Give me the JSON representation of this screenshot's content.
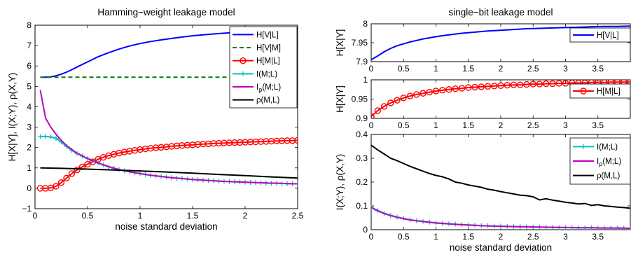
{
  "chart_data": [
    {
      "type": "line",
      "title": "Hamming−weight leakage model",
      "xlabel": "noise standard deviation",
      "ylabel": "H[X|Y], I(X;Y), ρ(X,Y)",
      "xlim": [
        0,
        2.5
      ],
      "ylim": [
        -1,
        8
      ],
      "xticks": [
        "0",
        "0.5",
        "1",
        "1.5",
        "2",
        "2.5"
      ],
      "yticks": [
        "−1",
        "0",
        "1",
        "2",
        "3",
        "4",
        "5",
        "6",
        "7",
        "8"
      ],
      "legend_position": "top-right",
      "series": [
        {
          "name": "H[V|L]",
          "color": "#0000ff",
          "dash": "solid",
          "marker": "none",
          "x": [
            0.05,
            0.1,
            0.15,
            0.2,
            0.25,
            0.3,
            0.35,
            0.4,
            0.5,
            0.6,
            0.7,
            0.8,
            0.9,
            1.0,
            1.1,
            1.2,
            1.3,
            1.4,
            1.5,
            1.6,
            1.7,
            1.8,
            1.9,
            2.0,
            2.1,
            2.2,
            2.3,
            2.4,
            2.5
          ],
          "y": [
            5.45,
            5.45,
            5.47,
            5.52,
            5.6,
            5.7,
            5.82,
            5.95,
            6.2,
            6.45,
            6.65,
            6.83,
            6.98,
            7.1,
            7.2,
            7.28,
            7.35,
            7.42,
            7.48,
            7.53,
            7.57,
            7.61,
            7.64,
            7.67,
            7.69,
            7.72,
            7.74,
            7.76,
            7.78
          ]
        },
        {
          "name": "H[V|M]",
          "color": "#008000",
          "dash": "dashed",
          "marker": "none",
          "x": [
            0.05,
            2.5
          ],
          "y": [
            5.45,
            5.45
          ]
        },
        {
          "name": "H[M|L]",
          "color": "#ff0000",
          "dash": "solid",
          "marker": "circle",
          "x": [
            0.05,
            0.1,
            0.15,
            0.2,
            0.25,
            0.3,
            0.35,
            0.4,
            0.45,
            0.5,
            0.55,
            0.6,
            0.65,
            0.7,
            0.75,
            0.8,
            0.85,
            0.9,
            0.95,
            1.0,
            1.05,
            1.1,
            1.15,
            1.2,
            1.25,
            1.3,
            1.35,
            1.4,
            1.45,
            1.5,
            1.55,
            1.6,
            1.65,
            1.7,
            1.75,
            1.8,
            1.85,
            1.9,
            1.95,
            2.0,
            2.05,
            2.1,
            2.15,
            2.2,
            2.25,
            2.3,
            2.35,
            2.4,
            2.45,
            2.5
          ],
          "y": [
            0.0,
            0.0,
            0.02,
            0.1,
            0.28,
            0.5,
            0.72,
            0.9,
            1.05,
            1.18,
            1.3,
            1.42,
            1.52,
            1.6,
            1.67,
            1.73,
            1.78,
            1.82,
            1.86,
            1.9,
            1.93,
            1.96,
            1.99,
            2.01,
            2.03,
            2.06,
            2.08,
            2.1,
            2.12,
            2.13,
            2.15,
            2.17,
            2.18,
            2.2,
            2.21,
            2.22,
            2.23,
            2.24,
            2.25,
            2.26,
            2.27,
            2.28,
            2.29,
            2.3,
            2.31,
            2.32,
            2.33,
            2.34,
            2.34,
            2.35
          ]
        },
        {
          "name": "I(M;L)",
          "color": "#00bfbf",
          "dash": "solid",
          "marker": "plus",
          "x": [
            0.05,
            0.1,
            0.15,
            0.2,
            0.25,
            0.3,
            0.35,
            0.4,
            0.45,
            0.5,
            0.55,
            0.6,
            0.65,
            0.7,
            0.75,
            0.8,
            0.85,
            0.9,
            0.95,
            1.0,
            1.05,
            1.1,
            1.15,
            1.2,
            1.25,
            1.3,
            1.35,
            1.4,
            1.45,
            1.5,
            1.55,
            1.6,
            1.65,
            1.7,
            1.75,
            1.8,
            1.85,
            1.9,
            1.95,
            2.0,
            2.05,
            2.1,
            2.15,
            2.2,
            2.25,
            2.3,
            2.35,
            2.4,
            2.45,
            2.5
          ],
          "y": [
            2.54,
            2.54,
            2.52,
            2.45,
            2.27,
            2.05,
            1.87,
            1.71,
            1.58,
            1.46,
            1.35,
            1.24,
            1.15,
            1.06,
            0.98,
            0.92,
            0.86,
            0.81,
            0.76,
            0.72,
            0.68,
            0.64,
            0.61,
            0.58,
            0.55,
            0.52,
            0.5,
            0.48,
            0.45,
            0.43,
            0.42,
            0.4,
            0.38,
            0.37,
            0.35,
            0.34,
            0.33,
            0.32,
            0.31,
            0.3,
            0.29,
            0.28,
            0.27,
            0.26,
            0.25,
            0.25,
            0.24,
            0.23,
            0.22,
            0.22
          ]
        },
        {
          "name": "Iρ(M;L)",
          "color": "#bf00bf",
          "dash": "solid",
          "marker": "none",
          "x": [
            0.05,
            0.1,
            0.15,
            0.2,
            0.25,
            0.3,
            0.35,
            0.4,
            0.5,
            0.6,
            0.7,
            0.8,
            0.9,
            1.0,
            1.1,
            1.2,
            1.3,
            1.4,
            1.5,
            1.6,
            1.7,
            1.8,
            1.9,
            2.0,
            2.1,
            2.2,
            2.3,
            2.4,
            2.5
          ],
          "y": [
            4.82,
            3.45,
            3.0,
            2.65,
            2.35,
            2.1,
            1.9,
            1.72,
            1.46,
            1.24,
            1.06,
            0.92,
            0.81,
            0.72,
            0.64,
            0.58,
            0.52,
            0.48,
            0.43,
            0.4,
            0.37,
            0.34,
            0.32,
            0.3,
            0.28,
            0.26,
            0.25,
            0.23,
            0.22
          ]
        },
        {
          "name": "ρ(M,L)",
          "color": "#000000",
          "dash": "solid",
          "marker": "none",
          "x": [
            0.05,
            0.25,
            0.5,
            0.75,
            1.0,
            1.25,
            1.5,
            1.75,
            2.0,
            2.25,
            2.5
          ],
          "y": [
            1.0,
            0.98,
            0.94,
            0.9,
            0.85,
            0.8,
            0.74,
            0.68,
            0.62,
            0.56,
            0.5
          ]
        }
      ]
    },
    {
      "type": "line",
      "title": "single−bit leakage model",
      "xlabel": "",
      "ylabel": "H[X|Y]",
      "xlim": [
        0,
        4
      ],
      "ylim": [
        7.9,
        8
      ],
      "xticks": [
        "0",
        "0.5",
        "1",
        "1.5",
        "2",
        "2.5",
        "3",
        "3.5"
      ],
      "yticks": [
        "7.9",
        "7.95",
        "8"
      ],
      "legend_position": "bottom-right",
      "series": [
        {
          "name": "H[V|L]",
          "color": "#0000ff",
          "dash": "solid",
          "marker": "none",
          "x": [
            0.0,
            0.1,
            0.2,
            0.3,
            0.4,
            0.5,
            0.6,
            0.7,
            0.8,
            0.9,
            1.0,
            1.2,
            1.4,
            1.6,
            1.8,
            2.0,
            2.2,
            2.4,
            2.6,
            2.8,
            3.0,
            3.2,
            3.4,
            3.6,
            3.8,
            4.0
          ],
          "y": [
            7.905,
            7.915,
            7.926,
            7.935,
            7.942,
            7.947,
            7.952,
            7.956,
            7.96,
            7.963,
            7.966,
            7.971,
            7.975,
            7.978,
            7.981,
            7.983,
            7.985,
            7.987,
            7.988,
            7.989,
            7.99,
            7.991,
            7.992,
            7.993,
            7.993,
            7.994
          ]
        }
      ]
    },
    {
      "type": "line",
      "title": "",
      "xlabel": "",
      "ylabel": "H[X|Y]",
      "xlim": [
        0,
        4
      ],
      "ylim": [
        0.9,
        1
      ],
      "xticks": [
        "0",
        "0.5",
        "1",
        "1.5",
        "2",
        "2.5",
        "3",
        "3.5"
      ],
      "yticks": [
        "0.9",
        "0.95",
        "1"
      ],
      "legend_position": "bottom-right",
      "series": [
        {
          "name": "H[M|L]",
          "color": "#ff0000",
          "dash": "solid",
          "marker": "circle",
          "x": [
            0.0,
            0.1,
            0.2,
            0.3,
            0.4,
            0.5,
            0.6,
            0.7,
            0.8,
            0.9,
            1.0,
            1.1,
            1.2,
            1.3,
            1.4,
            1.5,
            1.6,
            1.7,
            1.8,
            1.9,
            2.0,
            2.1,
            2.2,
            2.3,
            2.4,
            2.5,
            2.6,
            2.7,
            2.8,
            2.9,
            3.0,
            3.1,
            3.2,
            3.3,
            3.4,
            3.5,
            3.6,
            3.7,
            3.8,
            3.9,
            4.0
          ],
          "y": [
            0.905,
            0.92,
            0.931,
            0.94,
            0.947,
            0.953,
            0.958,
            0.962,
            0.965,
            0.968,
            0.971,
            0.973,
            0.975,
            0.977,
            0.978,
            0.98,
            0.981,
            0.982,
            0.983,
            0.984,
            0.985,
            0.986,
            0.987,
            0.987,
            0.988,
            0.989,
            0.989,
            0.99,
            0.99,
            0.991,
            0.991,
            0.992,
            0.992,
            0.992,
            0.993,
            0.993,
            0.993,
            0.994,
            0.994,
            0.994,
            0.994
          ]
        }
      ]
    },
    {
      "type": "line",
      "title": "",
      "xlabel": "noise standard deviation",
      "ylabel": "I(X;Y), ρ(X,Y)",
      "xlim": [
        0,
        4
      ],
      "ylim": [
        0,
        0.4
      ],
      "xticks": [
        "0",
        "0.5",
        "1",
        "1.5",
        "2",
        "2.5",
        "3",
        "3.5"
      ],
      "yticks": [
        "0",
        "0.1",
        "0.2",
        "0.3",
        "0.4"
      ],
      "legend_position": "top-right",
      "series": [
        {
          "name": "I(M;L)",
          "color": "#00bfbf",
          "dash": "solid",
          "marker": "plus",
          "x": [
            0.0,
            0.1,
            0.2,
            0.3,
            0.4,
            0.5,
            0.6,
            0.7,
            0.8,
            0.9,
            1.0,
            1.1,
            1.2,
            1.3,
            1.4,
            1.5,
            1.6,
            1.7,
            1.8,
            1.9,
            2.0,
            2.1,
            2.2,
            2.3,
            2.4,
            2.5,
            2.6,
            2.7,
            2.8,
            2.9,
            3.0,
            3.1,
            3.2,
            3.3,
            3.4,
            3.5,
            3.6,
            3.7,
            3.8,
            3.9,
            4.0
          ],
          "y": [
            0.095,
            0.08,
            0.069,
            0.06,
            0.053,
            0.047,
            0.042,
            0.038,
            0.035,
            0.032,
            0.029,
            0.027,
            0.025,
            0.023,
            0.021,
            0.02,
            0.019,
            0.017,
            0.016,
            0.015,
            0.015,
            0.014,
            0.013,
            0.012,
            0.012,
            0.011,
            0.011,
            0.01,
            0.01,
            0.009,
            0.009,
            0.009,
            0.008,
            0.008,
            0.008,
            0.007,
            0.007,
            0.007,
            0.007,
            0.006,
            0.006
          ]
        },
        {
          "name": "Iρ(M;L)",
          "color": "#bf00bf",
          "dash": "solid",
          "marker": "none",
          "x": [
            0.0,
            0.1,
            0.2,
            0.3,
            0.4,
            0.5,
            0.6,
            0.7,
            0.8,
            0.9,
            1.0,
            1.2,
            1.4,
            1.6,
            1.8,
            2.0,
            2.2,
            2.4,
            2.6,
            2.8,
            3.0,
            3.2,
            3.4,
            3.6,
            3.8,
            4.0
          ],
          "y": [
            0.093,
            0.079,
            0.068,
            0.059,
            0.052,
            0.046,
            0.041,
            0.037,
            0.034,
            0.031,
            0.028,
            0.024,
            0.021,
            0.018,
            0.016,
            0.014,
            0.013,
            0.012,
            0.011,
            0.01,
            0.009,
            0.008,
            0.008,
            0.007,
            0.007,
            0.006
          ]
        },
        {
          "name": "ρ(M,L)",
          "color": "#000000",
          "dash": "solid",
          "marker": "none",
          "x": [
            0.0,
            0.1,
            0.2,
            0.3,
            0.4,
            0.5,
            0.6,
            0.7,
            0.8,
            0.9,
            1.0,
            1.1,
            1.2,
            1.3,
            1.4,
            1.5,
            1.6,
            1.7,
            1.8,
            1.9,
            2.0,
            2.1,
            2.2,
            2.3,
            2.4,
            2.5,
            2.6,
            2.7,
            2.8,
            2.9,
            3.0,
            3.1,
            3.2,
            3.3,
            3.4,
            3.5,
            3.6,
            3.7,
            3.8,
            3.9,
            4.0
          ],
          "y": [
            0.355,
            0.335,
            0.318,
            0.3,
            0.29,
            0.278,
            0.266,
            0.256,
            0.246,
            0.236,
            0.228,
            0.222,
            0.213,
            0.2,
            0.195,
            0.188,
            0.183,
            0.178,
            0.17,
            0.166,
            0.16,
            0.155,
            0.15,
            0.145,
            0.143,
            0.138,
            0.125,
            0.13,
            0.124,
            0.12,
            0.115,
            0.112,
            0.108,
            0.11,
            0.102,
            0.105,
            0.1,
            0.098,
            0.095,
            0.093,
            0.09
          ]
        }
      ]
    }
  ]
}
